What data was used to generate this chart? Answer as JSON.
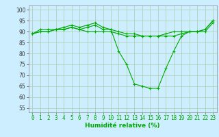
{
  "xlabel": "Humidité relative (%)",
  "bg_color": "#cceeff",
  "grid_color": "#aaccaa",
  "line_color": "#00aa00",
  "xlim": [
    -0.5,
    23.5
  ],
  "ylim": [
    53,
    102
  ],
  "yticks": [
    55,
    60,
    65,
    70,
    75,
    80,
    85,
    90,
    95,
    100
  ],
  "xticks": [
    0,
    1,
    2,
    3,
    4,
    5,
    6,
    7,
    8,
    9,
    10,
    11,
    12,
    13,
    14,
    15,
    16,
    17,
    18,
    19,
    20,
    21,
    22,
    23
  ],
  "series": [
    [
      89,
      90,
      90,
      91,
      91,
      92,
      91,
      90,
      90,
      90,
      90,
      89,
      88,
      88,
      88,
      88,
      88,
      88,
      88,
      89,
      90,
      90,
      90,
      94
    ],
    [
      89,
      91,
      91,
      91,
      92,
      93,
      92,
      93,
      94,
      92,
      91,
      81,
      75,
      66,
      65,
      64,
      64,
      73,
      81,
      88,
      90,
      90,
      91,
      95
    ],
    [
      89,
      90,
      90,
      91,
      91,
      92,
      91,
      92,
      93,
      91,
      91,
      90,
      89,
      89,
      88,
      88,
      88,
      89,
      90,
      90,
      90,
      90,
      91,
      95
    ]
  ],
  "tick_fontsize": 5.5,
  "xlabel_fontsize": 6.5
}
